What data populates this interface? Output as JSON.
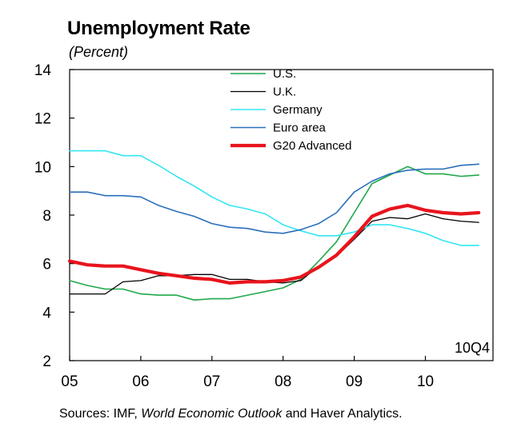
{
  "chart_data": {
    "type": "line",
    "title": "Unemployment Rate",
    "subtitle": "(Percent)",
    "xlabel": "",
    "ylabel": "",
    "ylim": [
      2,
      14
    ],
    "yticks": [
      2,
      4,
      6,
      8,
      10,
      12,
      14
    ],
    "xticks": [
      {
        "value": 2005,
        "label": "05"
      },
      {
        "value": 2006,
        "label": "06"
      },
      {
        "value": 2007,
        "label": "07"
      },
      {
        "value": 2008,
        "label": "08"
      },
      {
        "value": 2009,
        "label": "09"
      },
      {
        "value": 2010,
        "label": "10"
      }
    ],
    "xlim": [
      2005,
      2010.95
    ],
    "grid": false,
    "legend_position": "top-center",
    "annotation": "10Q4",
    "source": {
      "prefix": "Sources: IMF, ",
      "italic": "World Economic Outlook",
      "suffix": " and Haver Analytics."
    },
    "x": [
      2005.0,
      2005.25,
      2005.5,
      2005.75,
      2006.0,
      2006.25,
      2006.5,
      2006.75,
      2007.0,
      2007.25,
      2007.5,
      2007.75,
      2008.0,
      2008.25,
      2008.5,
      2008.75,
      2009.0,
      2009.25,
      2009.5,
      2009.75,
      2010.0,
      2010.25,
      2010.5,
      2010.75
    ],
    "series": [
      {
        "name": "U.S.",
        "color": "#1fa84a",
        "width": 1.6,
        "values": [
          5.3,
          5.1,
          4.95,
          4.95,
          4.75,
          4.7,
          4.7,
          4.5,
          4.55,
          4.55,
          4.7,
          4.85,
          5.0,
          5.35,
          6.1,
          6.9,
          8.1,
          9.3,
          9.65,
          10.0,
          9.7,
          9.7,
          9.6,
          9.65
        ]
      },
      {
        "name": "U.K.",
        "color": "#000000",
        "width": 1.3,
        "values": [
          4.75,
          4.75,
          4.75,
          5.25,
          5.3,
          5.5,
          5.5,
          5.55,
          5.55,
          5.35,
          5.35,
          5.25,
          5.2,
          5.3,
          5.9,
          6.3,
          7.0,
          7.75,
          7.9,
          7.85,
          8.05,
          7.85,
          7.75,
          7.7
        ]
      },
      {
        "name": "Germany",
        "color": "#33e6f2",
        "width": 1.6,
        "values": [
          10.65,
          10.65,
          10.65,
          10.45,
          10.45,
          10.05,
          9.6,
          9.2,
          8.75,
          8.4,
          8.25,
          8.05,
          7.6,
          7.35,
          7.15,
          7.15,
          7.3,
          7.6,
          7.6,
          7.45,
          7.25,
          6.95,
          6.75,
          6.75
        ]
      },
      {
        "name": "Euro area",
        "color": "#2a6fbb",
        "width": 1.6,
        "values": [
          8.95,
          8.95,
          8.8,
          8.8,
          8.75,
          8.4,
          8.15,
          7.95,
          7.65,
          7.5,
          7.45,
          7.3,
          7.25,
          7.4,
          7.65,
          8.1,
          8.95,
          9.4,
          9.7,
          9.85,
          9.9,
          9.9,
          10.05,
          10.1
        ]
      },
      {
        "name": "G20 Advanced",
        "color": "#e8141c",
        "width": 4.2,
        "values": [
          6.1,
          5.95,
          5.9,
          5.9,
          5.75,
          5.6,
          5.5,
          5.4,
          5.35,
          5.2,
          5.25,
          5.25,
          5.3,
          5.45,
          5.85,
          6.35,
          7.1,
          7.95,
          8.25,
          8.4,
          8.2,
          8.1,
          8.05,
          8.1
        ]
      }
    ]
  }
}
